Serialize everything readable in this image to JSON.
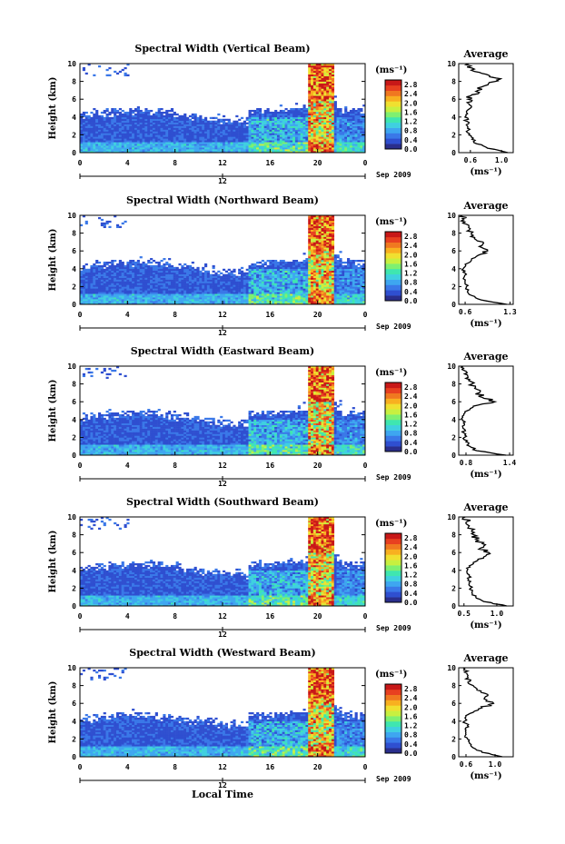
{
  "figure": {
    "xlabel": "Local Time",
    "colormap": [
      "#2a2e8c",
      "#2f4fd0",
      "#3a78e8",
      "#3ea6f0",
      "#3fd0e0",
      "#3fe6b0",
      "#7ff070",
      "#c8f040",
      "#f0e030",
      "#f8b020",
      "#f07820",
      "#e84020",
      "#c81818"
    ]
  },
  "chart_data": [
    {
      "type": "heatmap",
      "title": "Spectral Width (Vertical Beam)",
      "ylabel": "Height (km)",
      "ylim": [
        0,
        10
      ],
      "yticks": [
        "0",
        "2",
        "4",
        "6",
        "8",
        "10"
      ],
      "xticks": [
        "0",
        "4",
        "8",
        "12",
        "16",
        "20",
        "0"
      ],
      "xlim": [
        0,
        24
      ],
      "date_marker": "12",
      "date_label": "Sep 2009",
      "colorbar": {
        "unit": "(ms⁻¹)",
        "ticks": [
          "0.0",
          "0.4",
          "0.8",
          "1.2",
          "1.6",
          "2.0",
          "2.4",
          "2.8"
        ],
        "range": [
          0,
          3.0
        ]
      },
      "average": {
        "title": "Average",
        "unit": "(ms⁻¹)",
        "xticks": [
          "0.6",
          "1.0"
        ],
        "xlim": [
          0.45,
          1.15
        ],
        "profile": [
          [
            0.0,
            1.08
          ],
          [
            0.5,
            0.82
          ],
          [
            1.0,
            0.68
          ],
          [
            1.5,
            0.62
          ],
          [
            2.0,
            0.58
          ],
          [
            2.5,
            0.57
          ],
          [
            3.0,
            0.56
          ],
          [
            3.5,
            0.56
          ],
          [
            4.0,
            0.53
          ],
          [
            4.5,
            0.55
          ],
          [
            5.0,
            0.6
          ],
          [
            5.5,
            0.58
          ],
          [
            6.0,
            0.57
          ],
          [
            6.5,
            0.62
          ],
          [
            7.0,
            0.7
          ],
          [
            7.5,
            0.78
          ],
          [
            8.0,
            0.92
          ],
          [
            8.3,
            0.99
          ],
          [
            8.6,
            0.85
          ],
          [
            9.0,
            0.72
          ],
          [
            9.5,
            0.62
          ],
          [
            10.0,
            0.58
          ]
        ]
      }
    },
    {
      "type": "heatmap",
      "title": "Spectral Width (Northward Beam)",
      "ylabel": "Height (km)",
      "ylim": [
        0,
        10
      ],
      "yticks": [
        "0",
        "2",
        "4",
        "6",
        "8",
        "10"
      ],
      "xticks": [
        "0",
        "4",
        "8",
        "12",
        "16",
        "20",
        "0"
      ],
      "xlim": [
        0,
        24
      ],
      "date_marker": "12",
      "date_label": "Sep 2009",
      "colorbar": {
        "unit": "(ms⁻¹)",
        "ticks": [
          "0.0",
          "0.4",
          "0.8",
          "1.2",
          "1.6",
          "2.0",
          "2.4",
          "2.8"
        ],
        "range": [
          0,
          3.0
        ]
      },
      "average": {
        "title": "Average",
        "unit": "(ms⁻¹)",
        "xticks": [
          "0.6",
          "1.3"
        ],
        "xlim": [
          0.5,
          1.35
        ],
        "profile": [
          [
            0.0,
            1.25
          ],
          [
            0.5,
            0.85
          ],
          [
            1.0,
            0.7
          ],
          [
            1.5,
            0.64
          ],
          [
            2.0,
            0.62
          ],
          [
            2.5,
            0.6
          ],
          [
            3.0,
            0.58
          ],
          [
            3.5,
            0.6
          ],
          [
            4.0,
            0.57
          ],
          [
            4.5,
            0.6
          ],
          [
            5.0,
            0.7
          ],
          [
            5.5,
            0.8
          ],
          [
            6.0,
            0.95
          ],
          [
            6.5,
            0.82
          ],
          [
            7.0,
            0.88
          ],
          [
            7.5,
            0.75
          ],
          [
            8.0,
            0.7
          ],
          [
            8.5,
            0.68
          ],
          [
            9.0,
            0.62
          ],
          [
            9.5,
            0.58
          ],
          [
            10.0,
            0.56
          ]
        ]
      }
    },
    {
      "type": "heatmap",
      "title": "Spectral Width (Eastward Beam)",
      "ylabel": "Height (km)",
      "ylim": [
        0,
        10
      ],
      "yticks": [
        "0",
        "2",
        "4",
        "6",
        "8",
        "10"
      ],
      "xticks": [
        "0",
        "4",
        "8",
        "12",
        "16",
        "20",
        "0"
      ],
      "xlim": [
        0,
        24
      ],
      "date_marker": "12",
      "date_label": "Sep 2009",
      "colorbar": {
        "unit": "(ms⁻¹)",
        "ticks": [
          "0.0",
          "0.4",
          "0.8",
          "1.2",
          "1.6",
          "2.0",
          "2.4",
          "2.8"
        ],
        "range": [
          0,
          3.0
        ]
      },
      "average": {
        "title": "Average",
        "unit": "(ms⁻¹)",
        "xticks": [
          "0.8",
          "1.4"
        ],
        "xlim": [
          0.7,
          1.45
        ],
        "profile": [
          [
            0.0,
            1.35
          ],
          [
            0.5,
            0.95
          ],
          [
            1.0,
            0.85
          ],
          [
            1.5,
            0.8
          ],
          [
            2.0,
            0.78
          ],
          [
            2.5,
            0.77
          ],
          [
            3.0,
            0.76
          ],
          [
            3.5,
            0.78
          ],
          [
            4.0,
            0.75
          ],
          [
            4.5,
            0.77
          ],
          [
            5.0,
            0.82
          ],
          [
            5.5,
            0.9
          ],
          [
            6.0,
            1.2
          ],
          [
            6.5,
            1.02
          ],
          [
            7.0,
            0.98
          ],
          [
            7.5,
            0.92
          ],
          [
            8.0,
            0.88
          ],
          [
            8.5,
            0.85
          ],
          [
            9.0,
            0.82
          ],
          [
            9.5,
            0.78
          ],
          [
            10.0,
            0.76
          ]
        ]
      }
    },
    {
      "type": "heatmap",
      "title": "Spectral Width (Southward Beam)",
      "ylabel": "Height (km)",
      "ylim": [
        0,
        10
      ],
      "yticks": [
        "0",
        "2",
        "4",
        "6",
        "8",
        "10"
      ],
      "xticks": [
        "0",
        "4",
        "8",
        "12",
        "16",
        "20",
        "0"
      ],
      "xlim": [
        0,
        24
      ],
      "date_marker": "12",
      "date_label": "Sep 2009",
      "colorbar": {
        "unit": "(ms⁻¹)",
        "ticks": [
          "0.0",
          "0.4",
          "0.8",
          "1.2",
          "1.6",
          "2.0",
          "2.4",
          "2.8"
        ],
        "range": [
          0,
          3.0
        ]
      },
      "average": {
        "title": "Average",
        "unit": "(ms⁻¹)",
        "xticks": [
          "0.5",
          "1.0"
        ],
        "xlim": [
          0.42,
          1.25
        ],
        "profile": [
          [
            0.0,
            1.15
          ],
          [
            0.5,
            0.8
          ],
          [
            1.0,
            0.68
          ],
          [
            1.5,
            0.62
          ],
          [
            2.0,
            0.6
          ],
          [
            2.5,
            0.58
          ],
          [
            3.0,
            0.57
          ],
          [
            3.5,
            0.58
          ],
          [
            4.0,
            0.55
          ],
          [
            4.5,
            0.58
          ],
          [
            5.0,
            0.68
          ],
          [
            5.5,
            0.8
          ],
          [
            6.0,
            0.88
          ],
          [
            6.5,
            0.75
          ],
          [
            7.0,
            0.78
          ],
          [
            7.5,
            0.68
          ],
          [
            8.0,
            0.65
          ],
          [
            8.5,
            0.62
          ],
          [
            9.0,
            0.58
          ],
          [
            9.5,
            0.55
          ],
          [
            10.0,
            0.52
          ]
        ]
      }
    },
    {
      "type": "heatmap",
      "title": "Spectral Width (Westward Beam)",
      "ylabel": "Height (km)",
      "ylim": [
        0,
        10
      ],
      "yticks": [
        "0",
        "2",
        "4",
        "6",
        "8",
        "10"
      ],
      "xticks": [
        "0",
        "4",
        "8",
        "12",
        "16",
        "20",
        "0"
      ],
      "xlim": [
        0,
        24
      ],
      "date_marker": "12",
      "date_label": "Sep 2009",
      "colorbar": {
        "unit": "(ms⁻¹)",
        "ticks": [
          "0.0",
          "0.4",
          "0.8",
          "1.2",
          "1.6",
          "2.0",
          "2.4",
          "2.8"
        ],
        "range": [
          0,
          3.0
        ]
      },
      "average": {
        "title": "Average",
        "unit": "(ms⁻¹)",
        "xticks": [
          "0.6",
          "1.0"
        ],
        "xlim": [
          0.5,
          1.25
        ],
        "profile": [
          [
            0.0,
            1.1
          ],
          [
            0.5,
            0.82
          ],
          [
            1.0,
            0.7
          ],
          [
            1.5,
            0.65
          ],
          [
            2.0,
            0.62
          ],
          [
            2.5,
            0.6
          ],
          [
            3.0,
            0.6
          ],
          [
            3.5,
            0.62
          ],
          [
            4.0,
            0.58
          ],
          [
            4.5,
            0.6
          ],
          [
            5.0,
            0.7
          ],
          [
            5.5,
            0.82
          ],
          [
            6.0,
            0.98
          ],
          [
            6.5,
            0.85
          ],
          [
            7.0,
            0.9
          ],
          [
            7.5,
            0.75
          ],
          [
            8.0,
            0.7
          ],
          [
            8.5,
            0.66
          ],
          [
            9.0,
            0.62
          ],
          [
            9.5,
            0.58
          ],
          [
            10.0,
            0.56
          ]
        ]
      }
    }
  ]
}
